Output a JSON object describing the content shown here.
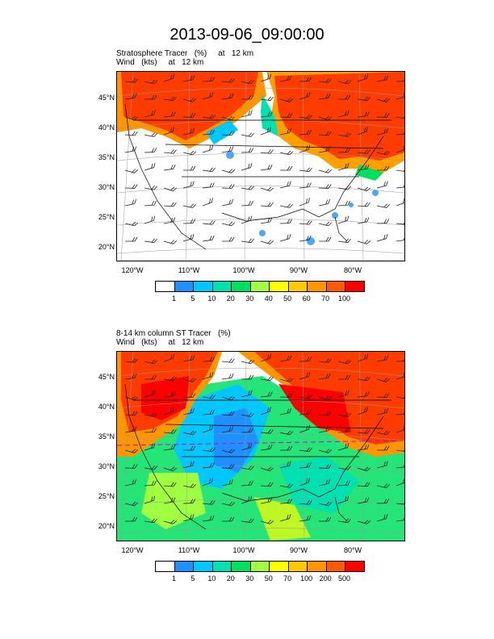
{
  "main_title": "2013-09-06_09:00:00",
  "panels": [
    {
      "title_line1": "Stratosphere Tracer   (%)     at   12 km",
      "title_line2": "Wind   (kts)     at   12 km",
      "lat_labels": [
        "45°N",
        "40°N",
        "35°N",
        "30°N",
        "25°N",
        "20°N"
      ],
      "lon_labels": [
        "120°W",
        "110°W",
        "100°W",
        "90°W",
        "80°W"
      ],
      "colorbar_labels": [
        "1",
        "5",
        "10",
        "20",
        "30",
        "40",
        "50",
        "60",
        "70",
        "100"
      ],
      "colorbar_colors": [
        "#ffffff",
        "#1e90ff",
        "#00c8ff",
        "#00e0b0",
        "#00e060",
        "#a0ff40",
        "#ffff00",
        "#ffc800",
        "#ff9600",
        "#ff5a00",
        "#ff0000"
      ]
    },
    {
      "title_line1": "8-14 km column ST Tracer   (%)",
      "title_line2": "Wind   (kts)     at   12 km",
      "lat_labels": [
        "45°N",
        "40°N",
        "35°N",
        "30°N",
        "25°N",
        "20°N"
      ],
      "lon_labels": [
        "120°W",
        "110°W",
        "100°W",
        "90°W",
        "80°W"
      ],
      "colorbar_labels": [
        "1",
        "5",
        "10",
        "20",
        "30",
        "50",
        "70",
        "100",
        "200",
        "500"
      ],
      "colorbar_colors": [
        "#ffffff",
        "#1e90ff",
        "#00c8ff",
        "#00e0b0",
        "#00e060",
        "#a0ff40",
        "#ffff00",
        "#ffc800",
        "#ff9600",
        "#ff5a00",
        "#ff0000"
      ]
    }
  ]
}
